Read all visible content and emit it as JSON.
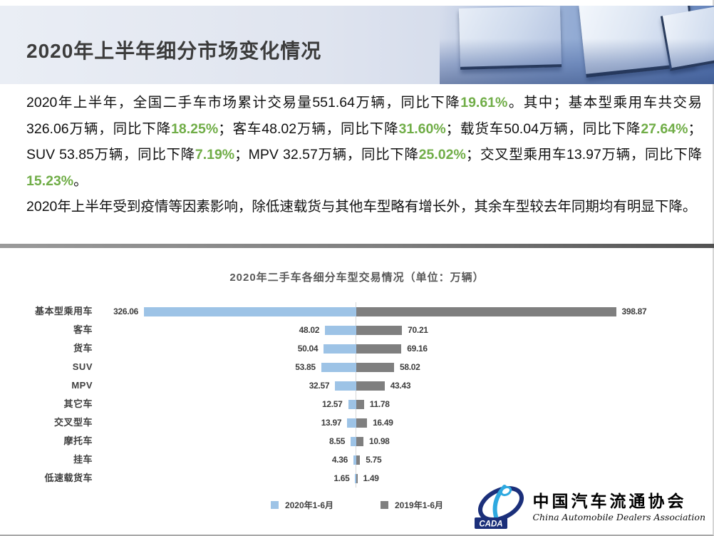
{
  "header": {
    "title": "2020年上半年细分市场变化情况"
  },
  "paragraphs": {
    "p1": [
      {
        "t": "2020年上半年，全国二手车市场累计交易量551.64万辆，同比下降"
      },
      {
        "t": "19.61%",
        "green": true
      },
      {
        "t": "。其中；基本型乘用车共交易326.06万辆，同比下降"
      },
      {
        "t": "18.25%",
        "green": true
      },
      {
        "t": "；客车48.02万辆，同比下降"
      },
      {
        "t": "31.60%",
        "green": true
      },
      {
        "t": "；载货车50.04万辆，同比下降"
      },
      {
        "t": "27.64%",
        "green": true
      },
      {
        "t": "；SUV 53.85万辆，同比下降"
      },
      {
        "t": "7.19%",
        "green": true
      },
      {
        "t": "；MPV 32.57万辆，同比下降"
      },
      {
        "t": "25.02%",
        "green": true
      },
      {
        "t": "；交叉型乘用车13.97万辆，同比下降"
      },
      {
        "t": "15.23%",
        "green": true
      },
      {
        "t": "。"
      }
    ],
    "p2": [
      {
        "t": "2020年上半年受到疫情等因素影响，除低速载货与其他车型略有增长外，其余车型较去年同期均有明显下降。"
      }
    ]
  },
  "chart_data": {
    "type": "bar",
    "orientation": "horizontal-diverging",
    "title": "2020年二手车各细分车型交易情况（单位：万辆）",
    "unit": "万辆",
    "categories": [
      "基本型乘用车",
      "客车",
      "货车",
      "SUV",
      "MPV",
      "其它车",
      "交叉型车",
      "摩托车",
      "挂车",
      "低速载货车"
    ],
    "series": [
      {
        "name": "2020年1-6月",
        "color": "#9DC3E6",
        "side": "left",
        "values": [
          326.06,
          48.02,
          50.04,
          53.85,
          32.57,
          12.57,
          13.97,
          8.55,
          4.36,
          1.65
        ]
      },
      {
        "name": "2019年1-6月",
        "color": "#7F7F7F",
        "side": "right",
        "values": [
          398.87,
          70.21,
          69.16,
          58.02,
          43.43,
          11.78,
          16.49,
          10.98,
          5.75,
          1.49
        ]
      }
    ],
    "legend_position": "bottom",
    "axis": {
      "center_value": 0,
      "grid": false
    }
  },
  "logo": {
    "cada": "CADA",
    "name_cn": "中国汽车流通协会",
    "name_en": "China Automobile Dealers Association"
  },
  "colors": {
    "green_highlight": "#70AD47",
    "bar_2020": "#9DC3E6",
    "bar_2019": "#7F7F7F",
    "divider_dark": "#525252",
    "title_text": "#3C3C3C"
  }
}
